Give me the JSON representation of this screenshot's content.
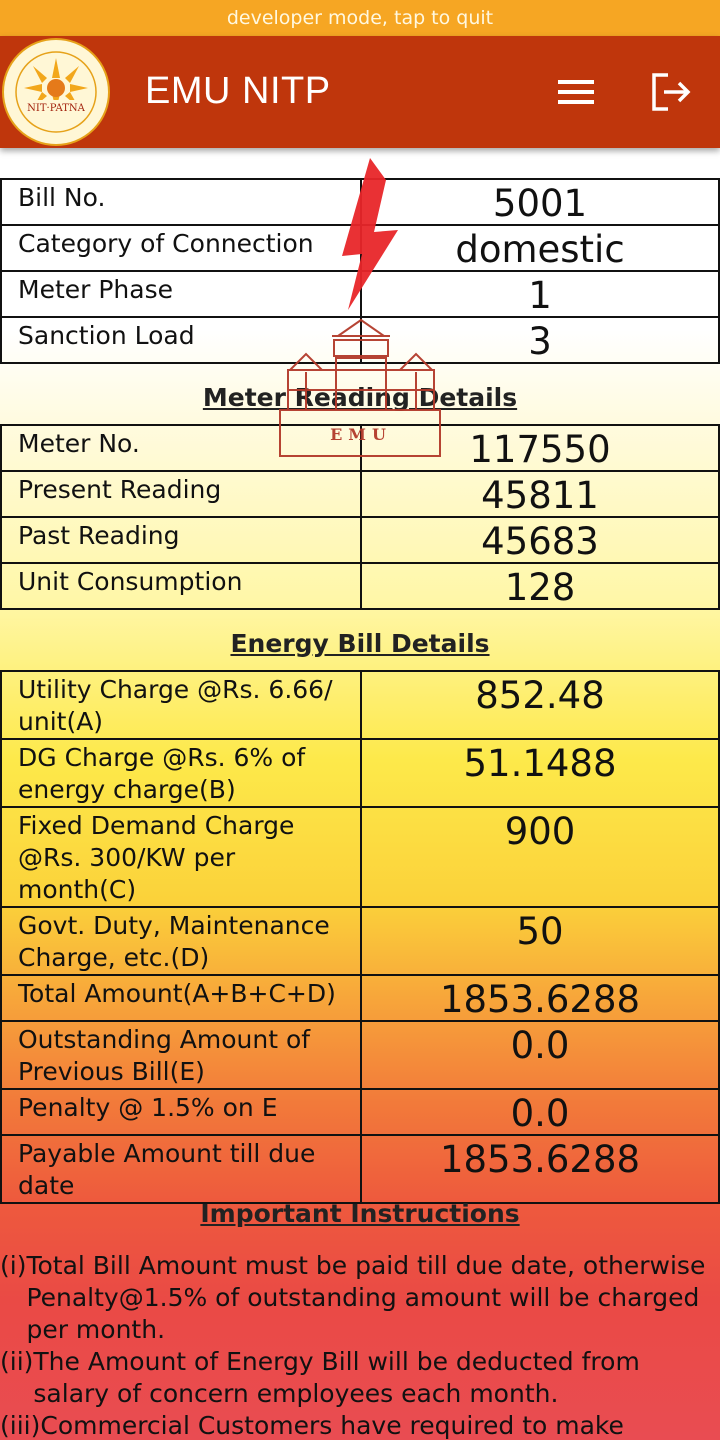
{
  "dev_banner": "developer mode, tap to quit",
  "app": {
    "title": "EMU NITP",
    "logo_text": "NIT·PATNA",
    "watermark_text": "EMU"
  },
  "bill_info": [
    {
      "label": "Bill No.",
      "value": "5001"
    },
    {
      "label": "Category of Connection",
      "value": "domestic"
    },
    {
      "label": "Meter Phase",
      "value": "1"
    },
    {
      "label": "Sanction Load",
      "value": "3"
    }
  ],
  "meter_section": {
    "title": "Meter Reading Details",
    "rows": [
      {
        "label": "Meter No.",
        "value": "117550"
      },
      {
        "label": "Present Reading",
        "value": "45811"
      },
      {
        "label": "Past Reading",
        "value": "45683"
      },
      {
        "label": "Unit Consumption",
        "value": "128"
      }
    ]
  },
  "energy_section": {
    "title": "Energy Bill Details",
    "rows": [
      {
        "label": "Utility Charge @Rs. 6.66/ unit(A)",
        "value": "852.48"
      },
      {
        "label": "DG Charge @Rs. 6% of energy charge(B)",
        "value": "51.1488"
      },
      {
        "label": "Fixed Demand Charge @Rs. 300/KW per month(C)",
        "value": "900"
      },
      {
        "label": "Govt. Duty, Maintenance Charge, etc.(D)",
        "value": "50"
      },
      {
        "label": "Total Amount(A+B+C+D)",
        "value": "1853.6288"
      },
      {
        "label": "Outstanding Amount of Previous Bill(E)",
        "value": "0.0"
      },
      {
        "label": "Penalty @ 1.5% on E",
        "value": "0.0"
      },
      {
        "label": "Payable Amount till due date",
        "value": "1853.6288"
      }
    ]
  },
  "instructions": {
    "title": "Important Instructions",
    "items": [
      {
        "num": "(i)",
        "text": "Total Bill Amount must be paid till due date, otherwise Penalty@1.5% of outstanding amount will be charged per month."
      },
      {
        "num": "(ii)",
        "text": "The Amount of Energy Bill will be deducted from salary of concern employees each month."
      },
      {
        "num": "(iii)",
        "text": "Commercial Customers have required to make"
      }
    ]
  },
  "icons": {
    "menu": "hamburger-menu-icon",
    "logout": "logout-icon",
    "logo": "nit-patna-logo",
    "watermark": "emu-lightning-building-watermark"
  },
  "colors": {
    "dev_banner": "#f6a623",
    "app_bar": "#bf360c"
  }
}
